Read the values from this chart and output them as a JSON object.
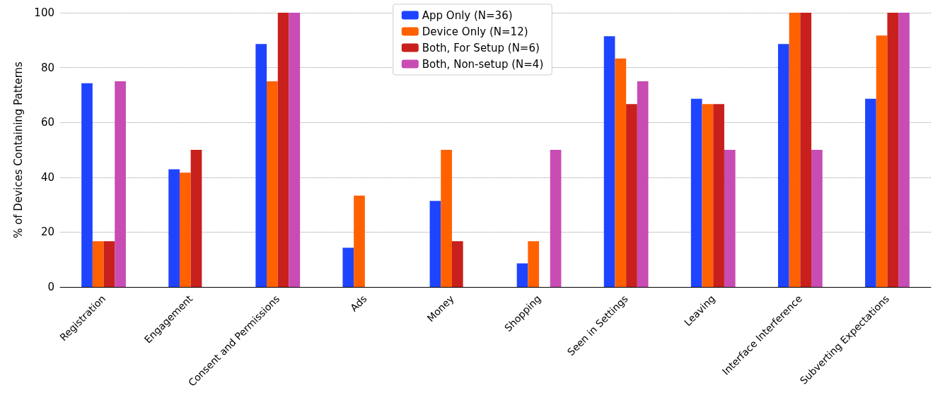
{
  "chart_data": {
    "type": "bar",
    "ylabel": "% of Devices Containing Patterns",
    "categories": [
      "Registration",
      "Engagement",
      "Consent and Permissions",
      "Ads",
      "Money",
      "Shopping",
      "Seen in Settings",
      "Leaving",
      "Interface Interference",
      "Subverting Expectations"
    ],
    "series": [
      {
        "name": "App Only (N=36)",
        "color": "#1f44ff",
        "values": [
          74.3,
          42.9,
          88.6,
          14.3,
          31.4,
          8.6,
          91.4,
          68.6,
          88.6,
          68.6
        ]
      },
      {
        "name": "Device Only (N=12)",
        "color": "#ff6100",
        "values": [
          16.7,
          41.7,
          75,
          33.3,
          50,
          16.7,
          83.3,
          66.7,
          100,
          91.7
        ]
      },
      {
        "name": "Both, For Setup (N=6)",
        "color": "#c8201c",
        "values": [
          16.7,
          50,
          100,
          0,
          16.7,
          0,
          66.7,
          66.7,
          100,
          100
        ]
      },
      {
        "name": "Both, Non-setup (N=4)",
        "color": "#c84cb4",
        "values": [
          75,
          0,
          100,
          0,
          0,
          50,
          75,
          50,
          50,
          100
        ]
      }
    ],
    "ylim": [
      0,
      100
    ],
    "yticks": [
      0,
      20,
      40,
      60,
      80,
      100
    ],
    "grid": "y",
    "legend": "top"
  }
}
